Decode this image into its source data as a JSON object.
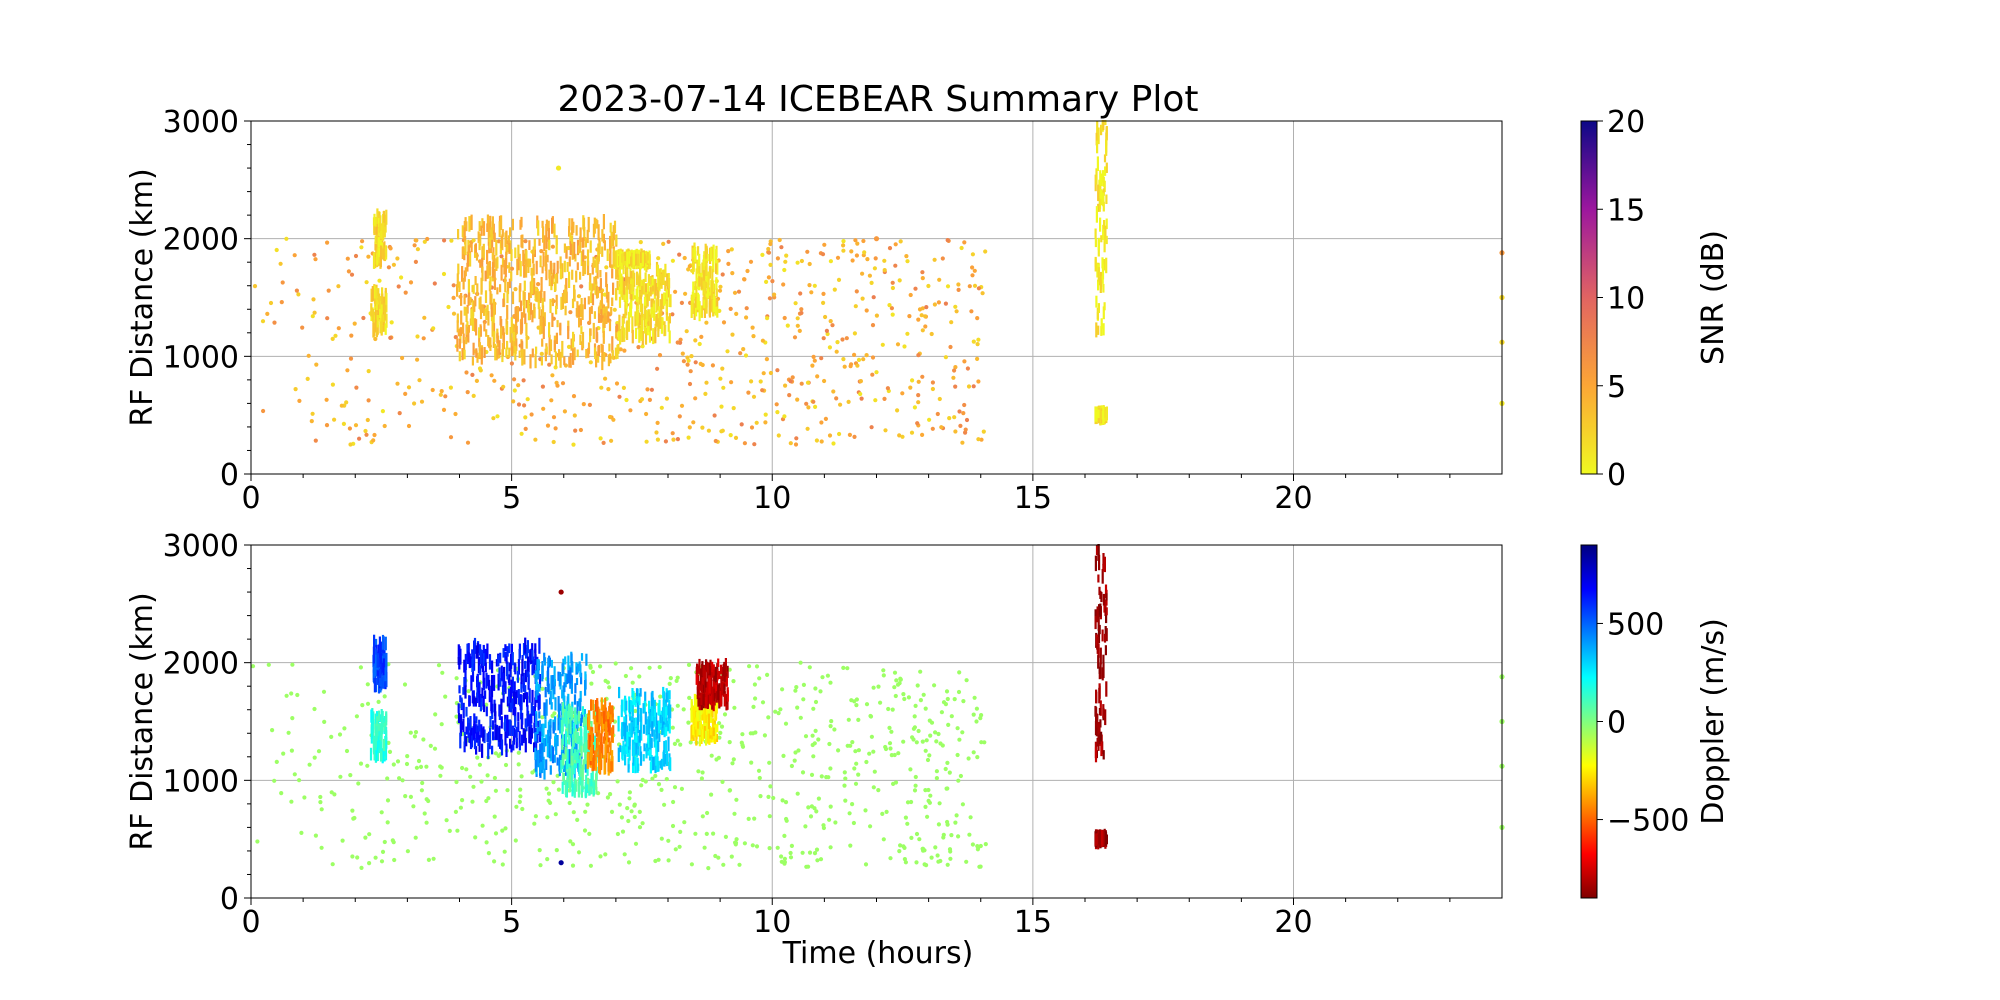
{
  "figure": {
    "title": "2023-07-14 ICEBEAR Summary Plot",
    "xlabel": "Time (hours)"
  },
  "chart_data": [
    {
      "type": "scatter",
      "title": "2023-07-14 ICEBEAR Summary Plot",
      "xlabel": "",
      "ylabel": "RF Distance (km)",
      "xlim": [
        0,
        24
      ],
      "ylim": [
        0,
        3000
      ],
      "xticks": [
        0,
        5,
        10,
        15,
        20
      ],
      "yticks": [
        0,
        1000,
        2000,
        3000
      ],
      "grid": true,
      "colorbar": {
        "label": "SNR (dB)",
        "range": [
          0,
          20
        ],
        "ticks": [
          0,
          5,
          10,
          15,
          20
        ],
        "colormap": "plasma_r"
      },
      "color_quantity": "snr",
      "series": [
        {
          "x": [
            2.35,
            2.4,
            2.45,
            2.5,
            2.55
          ],
          "y_range": [
            1200,
            1550
          ],
          "snr": 1
        },
        {
          "x": [
            2.4,
            2.45,
            2.5,
            2.55
          ],
          "y_range": [
            1800,
            2200
          ],
          "snr": 1
        },
        {
          "x": [
            4.0,
            4.3,
            4.6,
            4.9,
            5.2,
            5.5,
            5.8,
            6.1,
            6.4,
            6.7,
            7.0
          ],
          "y_range": [
            950,
            2150
          ],
          "snr": 3
        },
        {
          "x": [
            7.1,
            7.4,
            7.7,
            8.0
          ],
          "y_range": [
            1150,
            1750
          ],
          "snr": 1
        },
        {
          "x": [
            7.0,
            7.3,
            7.6
          ],
          "y_range": [
            1800,
            1850
          ],
          "snr": 0.5
        },
        {
          "x": [
            8.5,
            8.7,
            8.9
          ],
          "y_range": [
            1350,
            1900
          ],
          "snr": 0.5
        },
        {
          "x": [
            16.25
          ],
          "y_range": [
            1200,
            3000
          ],
          "snr": 0
        },
        {
          "x": [
            16.25
          ],
          "y_range": [
            480,
            520
          ],
          "snr": 0
        }
      ],
      "background_points": {
        "x_range": [
          0,
          14.1
        ],
        "y_range": [
          250,
          2000
        ],
        "snr_range": [
          1,
          8
        ]
      },
      "isolated_points": [
        {
          "x": 24.0,
          "y": 1880,
          "snr": 6
        },
        {
          "x": 24.0,
          "y": 1500,
          "snr": 2
        },
        {
          "x": 24.0,
          "y": 1120,
          "snr": 2
        },
        {
          "x": 24.0,
          "y": 600,
          "snr": 1
        },
        {
          "x": 12.0,
          "y": 2000,
          "snr": 6
        },
        {
          "x": 5.9,
          "y": 2600,
          "snr": 1
        }
      ]
    },
    {
      "type": "scatter",
      "title": "",
      "xlabel": "Time (hours)",
      "ylabel": "RF Distance (km)",
      "xlim": [
        0,
        24
      ],
      "ylim": [
        0,
        3000
      ],
      "xticks": [
        0,
        5,
        10,
        15,
        20
      ],
      "yticks": [
        0,
        1000,
        2000,
        3000
      ],
      "grid": true,
      "colorbar": {
        "label": "Doppler (m/s)",
        "range": [
          -900,
          900
        ],
        "ticks": [
          -500,
          0,
          500
        ],
        "tick_labels": [
          "−500",
          "0",
          "500"
        ],
        "colormap": "jet_r"
      },
      "color_quantity": "doppler",
      "series": [
        {
          "x": [
            2.35,
            2.4,
            2.45,
            2.5,
            2.55
          ],
          "y_range": [
            1200,
            1550
          ],
          "doppler": 150
        },
        {
          "x": [
            2.4,
            2.45,
            2.5,
            2.55
          ],
          "y_range": [
            1800,
            2200
          ],
          "doppler": 550
        },
        {
          "x": [
            4.0,
            4.5,
            5.0,
            5.5
          ],
          "y_range": [
            1250,
            2150
          ],
          "doppler": 650
        },
        {
          "x": [
            5.5,
            6.0,
            6.4
          ],
          "y_range": [
            1050,
            2050
          ],
          "doppler": 400
        },
        {
          "x": [
            6.0,
            6.3,
            6.6
          ],
          "y_range": [
            900,
            1600
          ],
          "doppler": 100
        },
        {
          "x": [
            6.5,
            6.7,
            6.9
          ],
          "y_range": [
            1100,
            1650
          ],
          "doppler": -450
        },
        {
          "x": [
            7.1,
            7.4,
            7.7,
            8.0
          ],
          "y_range": [
            1100,
            1750
          ],
          "doppler": 300
        },
        {
          "x": [
            8.5,
            8.7,
            8.9
          ],
          "y_range": [
            1350,
            1700
          ],
          "doppler": -250
        },
        {
          "x": [
            8.6,
            8.8,
            9.1
          ],
          "y_range": [
            1650,
            2000
          ],
          "doppler": -800
        },
        {
          "x": [
            16.25
          ],
          "y_range": [
            1200,
            3000
          ],
          "doppler": -850
        },
        {
          "x": [
            16.25
          ],
          "y_range": [
            480,
            520
          ],
          "doppler": -850
        }
      ],
      "background_points": {
        "x_range": [
          0,
          14.1
        ],
        "y_range": [
          250,
          2000
        ],
        "doppler": -50
      },
      "isolated_points": [
        {
          "x": 24.0,
          "y": 1880,
          "doppler": -50
        },
        {
          "x": 24.0,
          "y": 1500,
          "doppler": -50
        },
        {
          "x": 24.0,
          "y": 1120,
          "doppler": -50
        },
        {
          "x": 24.0,
          "y": 600,
          "doppler": -50
        },
        {
          "x": 5.95,
          "y": 2600,
          "doppler": -850
        },
        {
          "x": 5.95,
          "y": 300,
          "doppler": 850
        }
      ]
    }
  ]
}
